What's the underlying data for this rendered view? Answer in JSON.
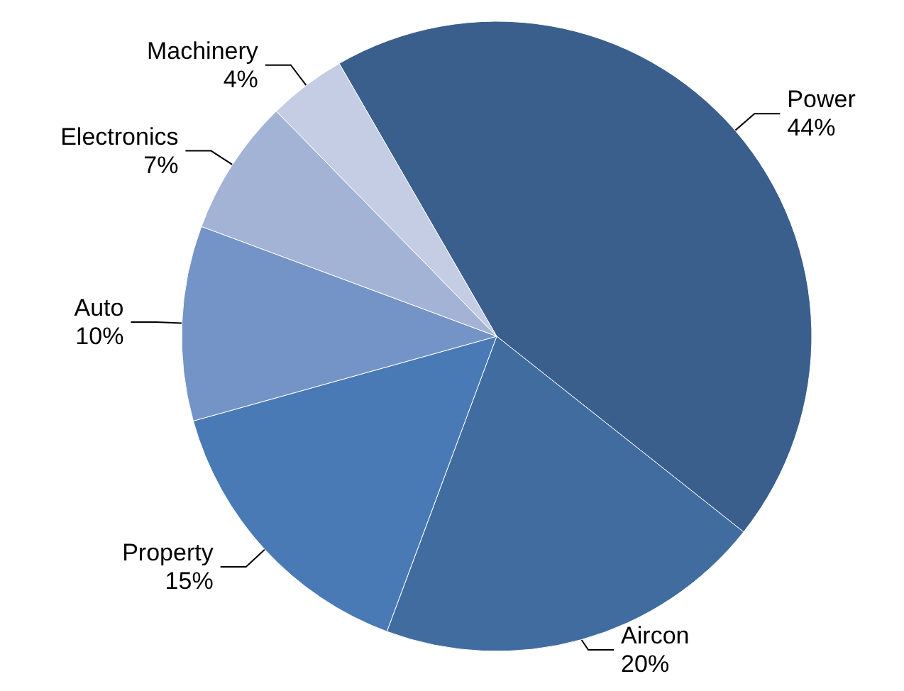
{
  "chart_data": {
    "type": "pie",
    "categories": [
      "Power",
      "Aircon",
      "Property",
      "Auto",
      "Electronics",
      "Machinery"
    ],
    "values": [
      44,
      20,
      15,
      10,
      7,
      4
    ],
    "colors": [
      "#3a5f8d",
      "#416ca0",
      "#4a7ab5",
      "#7493c6",
      "#a2b3d6",
      "#c4cde3"
    ],
    "value_labels": [
      "44%",
      "20%",
      "15%",
      "10%",
      "7%",
      "4%"
    ],
    "legend": false
  }
}
